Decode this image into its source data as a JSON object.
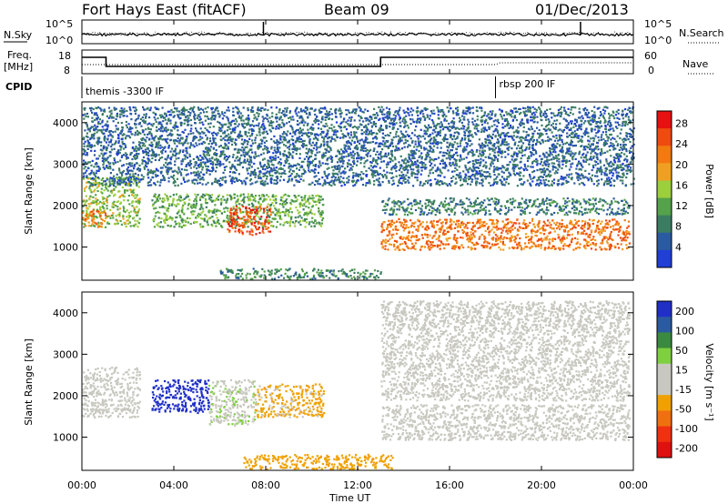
{
  "header": {
    "station": "Fort Hays East (fitACF)",
    "beam": "Beam 09",
    "date": "01/Dec/2013"
  },
  "noise_panel": {
    "left_label": "N.Sky",
    "right_label": "N.Search",
    "left_ticks": [
      "10^5",
      "10^0"
    ],
    "right_ticks": [
      "10^5",
      "10^0"
    ]
  },
  "freq_panel": {
    "left_label_1": "Freq.",
    "left_label_2": "[MHz]",
    "right_label": "Nave",
    "left_ticks": [
      "18",
      "8"
    ],
    "right_ticks": [
      "60",
      "0"
    ]
  },
  "cpid_panel": {
    "label": "CPID",
    "segments": [
      "themis -3300 IF",
      "rbsp 200 IF"
    ],
    "boundary_hour": 18.0
  },
  "colors": {
    "power_scale": [
      "#1f3fd6",
      "#2a5aa0",
      "#3b7d62",
      "#55a24a",
      "#9ccf3c",
      "#f0a020",
      "#f27a10",
      "#f04a10",
      "#e81010"
    ],
    "velocity_scale": [
      "#1f2fc8",
      "#2a5aa0",
      "#3a8a40",
      "#7fd040",
      "#c8c8c0",
      "#c8c8c0",
      "#f0a000",
      "#f07010",
      "#f03010",
      "#e01010"
    ]
  },
  "chart_data": [
    {
      "type": "heatmap",
      "quantity": "power",
      "ylabel": "Slant Range [km]",
      "ylim": [
        200,
        4500
      ],
      "y_ticks": [
        "1000",
        "2000",
        "3000",
        "4000"
      ],
      "x_ticks": [
        "00:00",
        "04:00",
        "08:00",
        "12:00",
        "16:00",
        "20:00",
        "00:00"
      ],
      "colorbar": {
        "label": "Power [dB]",
        "ticks": [
          "4",
          "8",
          "12",
          "16",
          "20",
          "24",
          "28"
        ],
        "range": [
          0,
          30
        ]
      },
      "regions": [
        {
          "t0": 0.0,
          "t1": 2.5,
          "r0": 1500,
          "r1": 2700,
          "value": 14
        },
        {
          "t0": 0.0,
          "t1": 1.0,
          "r0": 1500,
          "r1": 1900,
          "value": 22
        },
        {
          "t0": 3.0,
          "t1": 10.5,
          "r0": 1500,
          "r1": 2300,
          "value": 12
        },
        {
          "t0": 6.3,
          "t1": 8.2,
          "r0": 1300,
          "r1": 2000,
          "value": 25
        },
        {
          "t0": 13.0,
          "t1": 23.8,
          "r0": 950,
          "r1": 1700,
          "value": 22
        },
        {
          "t0": 13.0,
          "t1": 23.8,
          "r0": 1800,
          "r1": 2200,
          "value": 8
        },
        {
          "t0": 0.0,
          "t1": 24.0,
          "r0": 2500,
          "r1": 4400,
          "value": 6
        },
        {
          "t0": 6.0,
          "t1": 13.0,
          "r0": 250,
          "r1": 500,
          "value": 9
        }
      ]
    },
    {
      "type": "heatmap",
      "quantity": "velocity",
      "ylabel": "Slant Range [km]",
      "xlabel": "Time UT",
      "ylim": [
        200,
        4500
      ],
      "y_ticks": [
        "1000",
        "2000",
        "3000",
        "4000"
      ],
      "x_ticks": [
        "00:00",
        "04:00",
        "08:00",
        "12:00",
        "16:00",
        "20:00",
        "00:00"
      ],
      "colorbar": {
        "label": "Velocity [m s⁻¹]",
        "ticks": [
          "200",
          "100",
          "50",
          "15",
          "-15",
          "-50",
          "-100",
          "-200"
        ],
        "range": [
          -250,
          250
        ]
      },
      "regions": [
        {
          "t0": 0.0,
          "t1": 2.5,
          "r0": 1500,
          "r1": 2700,
          "value": 0
        },
        {
          "t0": 3.0,
          "t1": 5.5,
          "r0": 1600,
          "r1": 2400,
          "value": 220
        },
        {
          "t0": 5.5,
          "t1": 7.5,
          "r0": 1300,
          "r1": 2400,
          "value": 40
        },
        {
          "t0": 7.5,
          "t1": 10.5,
          "r0": 1500,
          "r1": 2300,
          "value": -60
        },
        {
          "t0": 13.0,
          "t1": 23.8,
          "r0": 950,
          "r1": 1800,
          "value": 0
        },
        {
          "t0": 13.0,
          "t1": 23.8,
          "r0": 1900,
          "r1": 4300,
          "value": 0
        },
        {
          "t0": 7.0,
          "t1": 13.5,
          "r0": 250,
          "r1": 600,
          "value": -70
        }
      ]
    }
  ]
}
